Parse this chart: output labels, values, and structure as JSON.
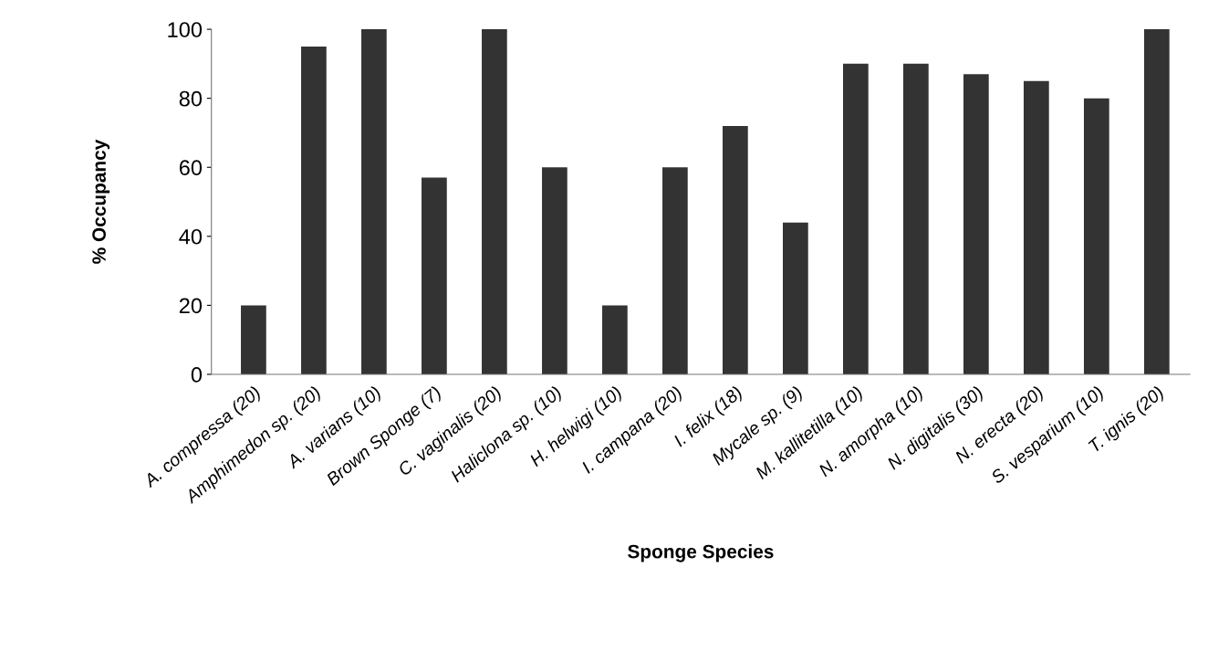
{
  "chart_data": {
    "type": "bar",
    "xlabel": "Sponge Species",
    "ylabel": "% Occupancy",
    "categories": [
      "A. compressa (20)",
      "Amphimedon sp. (20)",
      "A. varians (10)",
      "Brown Sponge (7)",
      "C. vaginalis (20)",
      "Haliclona sp. (10)",
      "H. helwigi (10)",
      "I. campana (20)",
      "I. felix (18)",
      "Mycale sp. (9)",
      "M. kallitetilla (10)",
      "N. amorpha (10)",
      "N. digitalis (30)",
      "N. erecta (20)",
      "S. vesparium (10)",
      "T. ignis (20)"
    ],
    "values": [
      20,
      95,
      100,
      57,
      100,
      60,
      20,
      60,
      72,
      44,
      90,
      90,
      87,
      85,
      80,
      100
    ],
    "color": "#333333",
    "ylim": [
      0,
      100
    ],
    "yticks": [
      0,
      20,
      40,
      60,
      80,
      100
    ],
    "grid": false,
    "legend": false
  }
}
